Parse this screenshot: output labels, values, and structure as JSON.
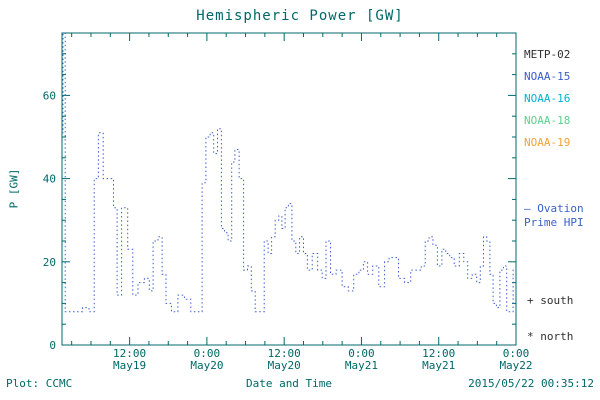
{
  "title": "Hemispheric Power [GW]",
  "colors": {
    "frame": "#006868",
    "text": "#006868",
    "series": "#3a5fcd"
  },
  "axes": {
    "ylabel": "P [GW]",
    "ylim": [
      0,
      75
    ],
    "yticks": [
      0,
      20,
      40,
      60
    ],
    "xticks": [
      {
        "t": 12,
        "time": "12:00",
        "date": "May19"
      },
      {
        "t": 24,
        "time": "0:00",
        "date": "May20"
      },
      {
        "t": 36,
        "time": "12:00",
        "date": "May20"
      },
      {
        "t": 48,
        "time": "0:00",
        "date": "May21"
      },
      {
        "t": 60,
        "time": "12:00",
        "date": "May21"
      },
      {
        "t": 72,
        "time": "0:00",
        "date": "May22"
      }
    ]
  },
  "legend": {
    "satellites": [
      {
        "label": "METP-02",
        "color": "#303030"
      },
      {
        "label": "NOAA-15",
        "color": "#3a5fcd"
      },
      {
        "label": "NOAA-16",
        "color": "#00b2d4"
      },
      {
        "label": "NOAA-18",
        "color": "#5ecf8f"
      },
      {
        "label": "NOAA-19",
        "color": "#f2a23a"
      }
    ]
  },
  "annotations": {
    "ovation_line1": "– Ovation",
    "ovation_line2": "Prime HPI",
    "ovation_color": "#3a5fcd",
    "south": "+ south",
    "north": "* north"
  },
  "footer": {
    "left": "Plot: CCMC",
    "center": "Date and Time",
    "right": "2015/05/22 00:35:12"
  },
  "chart_data": {
    "type": "line",
    "style": "dotted step (histogram mode)",
    "title": "Hemispheric Power [GW]",
    "xlabel": "Date and Time",
    "ylabel": "P [GW]",
    "x_unit": "hours since 2015-05-19 00:00 UT",
    "x_range": [
      1.5,
      72
    ],
    "ylim": [
      0,
      75
    ],
    "grid": false,
    "legend_position": "right-outside",
    "series": [
      {
        "name": "Hemispheric Power (Ovation Prime HPI)",
        "color": "#3a5fcd",
        "points": [
          [
            1.5,
            51
          ],
          [
            1.8,
            75
          ],
          [
            2.2,
            8
          ],
          [
            3.2,
            8
          ],
          [
            4.2,
            8
          ],
          [
            5.2,
            9
          ],
          [
            6.2,
            8
          ],
          [
            6.8,
            40
          ],
          [
            7.5,
            51
          ],
          [
            8.3,
            40
          ],
          [
            9.2,
            40
          ],
          [
            9.8,
            33
          ],
          [
            10.3,
            12
          ],
          [
            11.2,
            33
          ],
          [
            12.2,
            23
          ],
          [
            12.8,
            12
          ],
          [
            13.8,
            15
          ],
          [
            14.8,
            16
          ],
          [
            15.3,
            13
          ],
          [
            16.0,
            25
          ],
          [
            16.8,
            26
          ],
          [
            17.3,
            17
          ],
          [
            18.0,
            10
          ],
          [
            19.0,
            8
          ],
          [
            20.0,
            12
          ],
          [
            21.0,
            11
          ],
          [
            22.0,
            8
          ],
          [
            23.0,
            8
          ],
          [
            23.5,
            39
          ],
          [
            24.2,
            50
          ],
          [
            24.8,
            51
          ],
          [
            25.3,
            46
          ],
          [
            26.0,
            52
          ],
          [
            26.5,
            28
          ],
          [
            27.0,
            27
          ],
          [
            27.6,
            25
          ],
          [
            28.1,
            44
          ],
          [
            28.6,
            47
          ],
          [
            29.4,
            40
          ],
          [
            30.0,
            18
          ],
          [
            30.6,
            19
          ],
          [
            31.2,
            13
          ],
          [
            31.8,
            8
          ],
          [
            32.6,
            8
          ],
          [
            33.2,
            25
          ],
          [
            33.8,
            22
          ],
          [
            34.3,
            26
          ],
          [
            34.9,
            30
          ],
          [
            35.4,
            31
          ],
          [
            35.9,
            28
          ],
          [
            36.4,
            33
          ],
          [
            36.9,
            34
          ],
          [
            37.5,
            25
          ],
          [
            38.1,
            22
          ],
          [
            38.7,
            26
          ],
          [
            39.3,
            22
          ],
          [
            39.9,
            18
          ],
          [
            40.8,
            22
          ],
          [
            41.6,
            18
          ],
          [
            42.2,
            16
          ],
          [
            42.8,
            25
          ],
          [
            43.6,
            17
          ],
          [
            44.5,
            18
          ],
          [
            45.5,
            14
          ],
          [
            46.4,
            13
          ],
          [
            47.2,
            17
          ],
          [
            48.0,
            18
          ],
          [
            48.6,
            20
          ],
          [
            49.3,
            17
          ],
          [
            50.2,
            19
          ],
          [
            51.2,
            14
          ],
          [
            52.0,
            20
          ],
          [
            52.6,
            21
          ],
          [
            53.3,
            21
          ],
          [
            54.2,
            16
          ],
          [
            55.2,
            15
          ],
          [
            56.1,
            18
          ],
          [
            57.0,
            18
          ],
          [
            57.6,
            19
          ],
          [
            58.2,
            25
          ],
          [
            58.8,
            26
          ],
          [
            59.4,
            24
          ],
          [
            60.2,
            19
          ],
          [
            60.8,
            23
          ],
          [
            61.4,
            22
          ],
          [
            62.0,
            21
          ],
          [
            62.8,
            19
          ],
          [
            63.6,
            22
          ],
          [
            64.2,
            20
          ],
          [
            64.8,
            16
          ],
          [
            65.6,
            17
          ],
          [
            66.2,
            15
          ],
          [
            66.7,
            19
          ],
          [
            67.2,
            26
          ],
          [
            67.7,
            25
          ],
          [
            68.2,
            17
          ],
          [
            68.7,
            10
          ],
          [
            69.2,
            9
          ],
          [
            69.8,
            18
          ],
          [
            70.3,
            19
          ],
          [
            70.8,
            8
          ],
          [
            71.3,
            8
          ],
          [
            71.8,
            18
          ]
        ]
      }
    ]
  }
}
